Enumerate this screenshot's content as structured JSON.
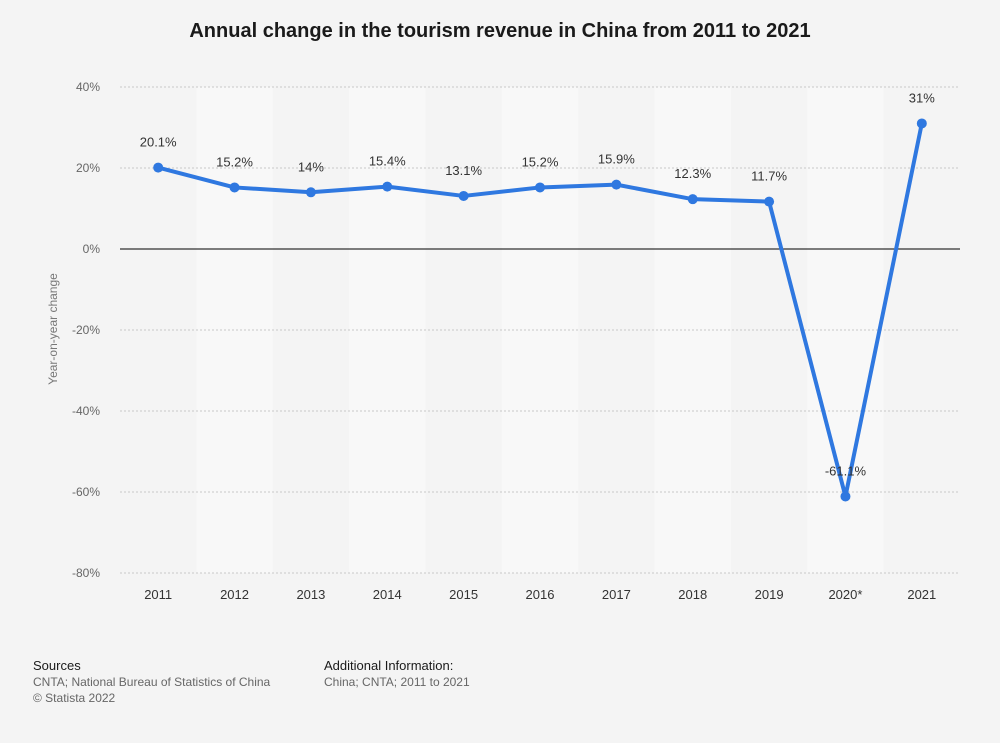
{
  "title": "Annual change in the tourism revenue in China from 2011 to 2021",
  "chart_data": {
    "type": "line",
    "title": "Annual change in the tourism revenue in China from 2011 to 2021",
    "xlabel": "",
    "ylabel": "Year-on-year change",
    "categories": [
      "2011",
      "2012",
      "2013",
      "2014",
      "2015",
      "2016",
      "2017",
      "2018",
      "2019",
      "2020*",
      "2021"
    ],
    "series": [
      {
        "name": "Year-on-year change",
        "values": [
          20.1,
          15.2,
          14,
          15.4,
          13.1,
          15.2,
          15.9,
          12.3,
          11.7,
          -61.1,
          31
        ],
        "labels": [
          "20.1%",
          "15.2%",
          "14%",
          "15.4%",
          "13.1%",
          "15.2%",
          "15.9%",
          "12.3%",
          "11.7%",
          "-61.1%",
          "31%"
        ]
      }
    ],
    "ylim": [
      -80,
      40
    ],
    "yticks": [
      40,
      20,
      0,
      -20,
      -40,
      -60,
      -80
    ],
    "ytick_labels": [
      "40%",
      "20%",
      "0%",
      "-20%",
      "-40%",
      "-60%",
      "-80%"
    ],
    "grid": true,
    "line_color": "#2f78e0"
  },
  "footer": {
    "sources_heading": "Sources",
    "sources_line1": "CNTA; National Bureau of Statistics of China",
    "sources_line2": "© Statista 2022",
    "additional_heading": "Additional Information:",
    "additional_line1": "China; CNTA; 2011 to 2021"
  }
}
